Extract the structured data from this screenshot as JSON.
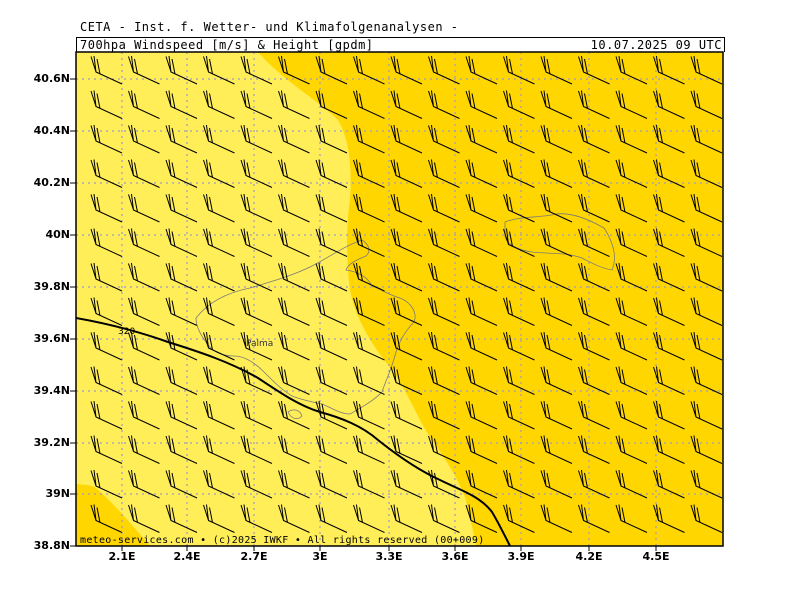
{
  "header": {
    "title": "CETA - Inst. f. Wetter- und Klimafolgenanalysen -",
    "subtitle": "700hpa Windspeed [m/s] & Height [gpdm]",
    "datetime": "10.07.2025 09 UTC"
  },
  "map": {
    "lat_labels": [
      "40.6N",
      "40.4N",
      "40.2N",
      "40N",
      "39.8N",
      "39.6N",
      "39.4N",
      "39.2N",
      "39N",
      "38.8N"
    ],
    "lon_labels": [
      "2.1E",
      "2.4E",
      "2.7E",
      "3E",
      "3.3E",
      "3.6E",
      "3.9E",
      "4.2E",
      "4.5E"
    ],
    "place_label": "Palma",
    "contour_label": "320",
    "credit": "meteo-services.com • (c)2025 IWKF • All rights reserved (00+009)"
  },
  "colors": {
    "light_fill": "#FFEE58",
    "dark_fill": "#FFD600",
    "grid": "#9C9CC8",
    "barb": "#000000",
    "coast": "#7A7A7A"
  }
}
